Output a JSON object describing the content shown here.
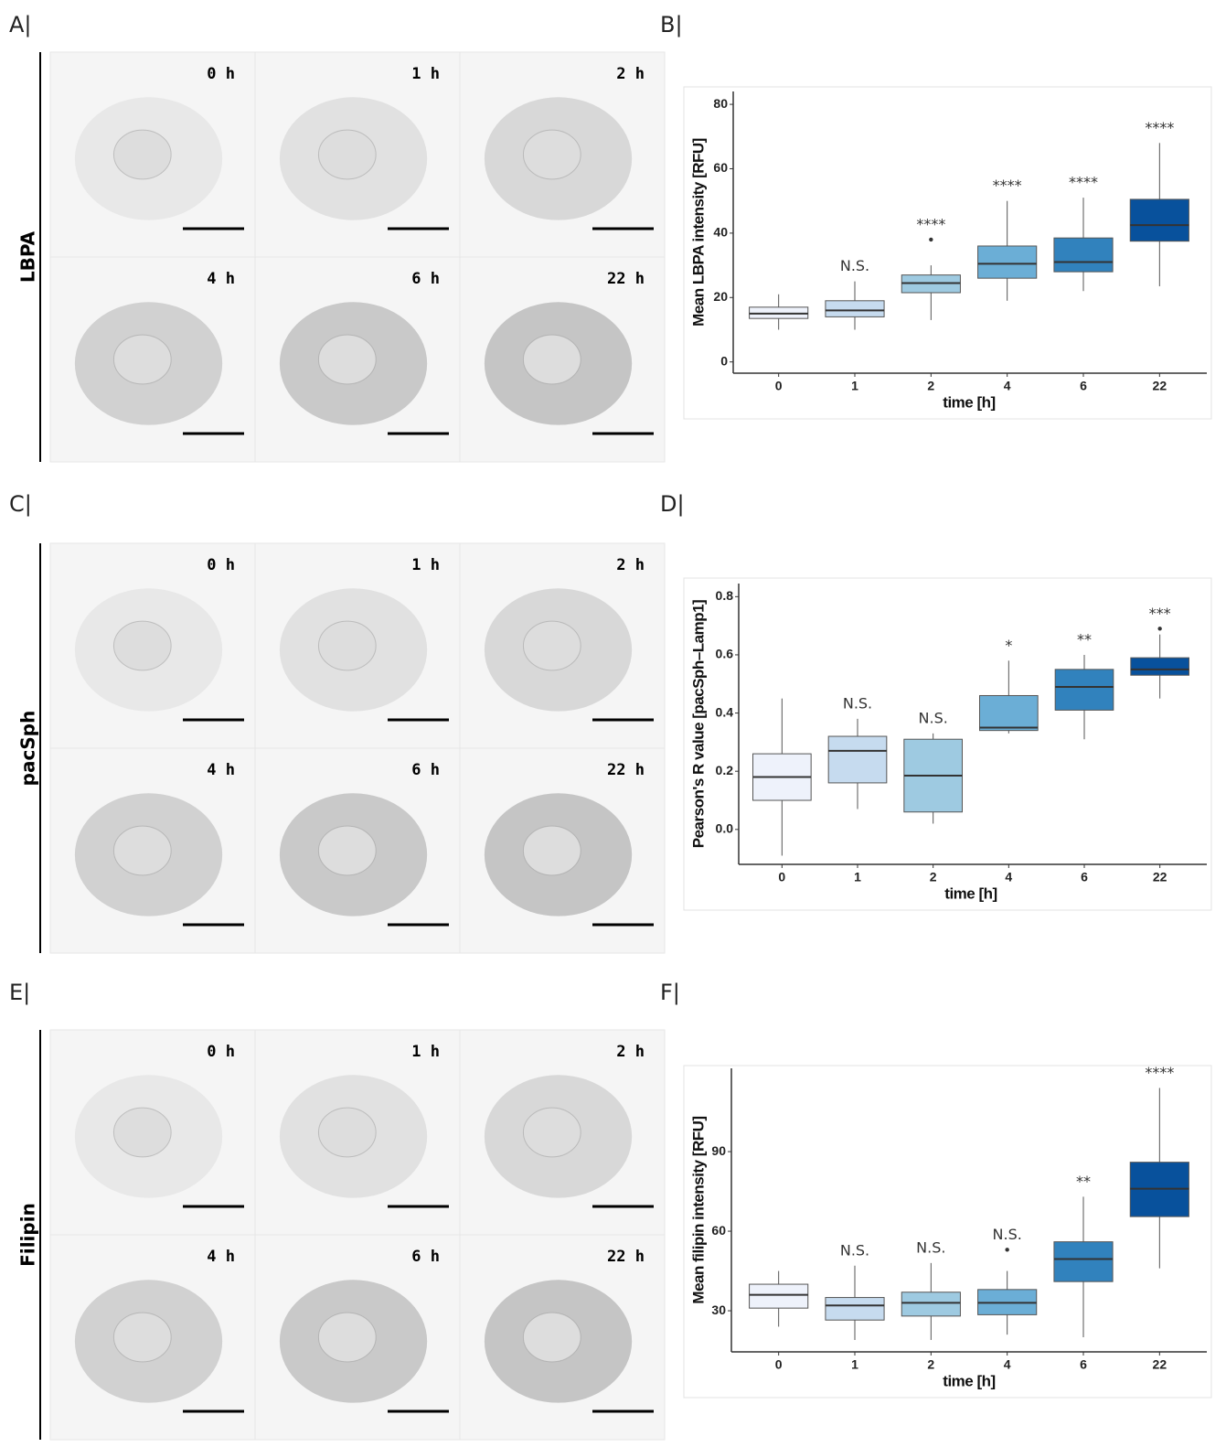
{
  "image_panels": [
    {
      "letter": "A|",
      "label": "LBPA",
      "tiles": [
        "0 h",
        "1 h",
        "2 h",
        "4 h",
        "6 h",
        "22 h"
      ]
    },
    {
      "letter": "C|",
      "label": "pacSph",
      "tiles": [
        "0 h",
        "1 h",
        "2 h",
        "4 h",
        "6 h",
        "22 h"
      ]
    },
    {
      "letter": "E|",
      "label": "Filipin",
      "tiles": [
        "0 h",
        "1 h",
        "2 h",
        "4 h",
        "6 h",
        "22 h"
      ]
    }
  ],
  "chart_data": [
    {
      "type": "box",
      "panel_label": "B|",
      "y_label": "Mean LBPA intensity [RFU]",
      "x_label": "time [h]",
      "categories": [
        "0",
        "1",
        "2",
        "4",
        "6",
        "22"
      ],
      "colors": [
        "#eef2fb",
        "#c6dbef",
        "#9ecae1",
        "#6baed6",
        "#3182bd",
        "#08519c"
      ],
      "boxes": [
        {
          "min": 10,
          "q1": 13.5,
          "median": 15,
          "q3": 17,
          "max": 21,
          "outliers": []
        },
        {
          "min": 10,
          "q1": 14,
          "median": 16,
          "q3": 19,
          "max": 25,
          "outliers": []
        },
        {
          "min": 13,
          "q1": 21.5,
          "median": 24.5,
          "q3": 27,
          "max": 30,
          "outliers": [
            38
          ]
        },
        {
          "min": 19,
          "q1": 26,
          "median": 30.5,
          "q3": 36,
          "max": 50,
          "outliers": []
        },
        {
          "min": 22,
          "q1": 28,
          "median": 31,
          "q3": 38.5,
          "max": 51,
          "outliers": []
        },
        {
          "min": 23.5,
          "q1": 37.5,
          "median": 42.5,
          "q3": 50.5,
          "max": 68,
          "outliers": []
        }
      ],
      "annotations": [
        null,
        "N.S.",
        "****",
        "****",
        "****",
        "****"
      ],
      "ylim": [
        -3.5,
        84
      ],
      "yticks": [
        0,
        20,
        40,
        60,
        80
      ]
    },
    {
      "type": "box",
      "panel_label": "D|",
      "y_label": "Pearson's R value [pacSph–Lamp1]",
      "x_label": "time [h]",
      "categories": [
        "0",
        "1",
        "2",
        "4",
        "6",
        "22"
      ],
      "colors": [
        "#eef2fb",
        "#c6dbef",
        "#9ecae1",
        "#6baed6",
        "#3182bd",
        "#08519c"
      ],
      "boxes": [
        {
          "min": -0.09,
          "q1": 0.1,
          "median": 0.18,
          "q3": 0.26,
          "max": 0.45,
          "outliers": []
        },
        {
          "min": 0.07,
          "q1": 0.16,
          "median": 0.27,
          "q3": 0.32,
          "max": 0.38,
          "outliers": []
        },
        {
          "min": 0.02,
          "q1": 0.06,
          "median": 0.185,
          "q3": 0.31,
          "max": 0.33,
          "outliers": []
        },
        {
          "min": 0.33,
          "q1": 0.34,
          "median": 0.35,
          "q3": 0.46,
          "max": 0.58,
          "outliers": []
        },
        {
          "min": 0.31,
          "q1": 0.41,
          "median": 0.49,
          "q3": 0.55,
          "max": 0.6,
          "outliers": []
        },
        {
          "min": 0.45,
          "q1": 0.53,
          "median": 0.55,
          "q3": 0.59,
          "max": 0.67,
          "outliers": [
            0.69
          ]
        }
      ],
      "annotations": [
        null,
        "N.S.",
        "N.S.",
        "*",
        "**",
        "***"
      ],
      "ylim": [
        -0.12,
        0.845
      ],
      "yticks": [
        {
          "value": 0,
          "label": "0.0"
        },
        0.2,
        0.4,
        0.6,
        0.8
      ]
    },
    {
      "type": "box",
      "panel_label": "F|",
      "y_label": "Mean filipin intensity [RFU]",
      "x_label": "time [h]",
      "categories": [
        "0",
        "1",
        "2",
        "4",
        "6",
        "22"
      ],
      "colors": [
        "#eef2fb",
        "#c6dbef",
        "#9ecae1",
        "#6baed6",
        "#3182bd",
        "#08519c"
      ],
      "boxes": [
        {
          "min": 24,
          "q1": 31,
          "median": 36,
          "q3": 40,
          "max": 45,
          "outliers": []
        },
        {
          "min": 19,
          "q1": 26.5,
          "median": 32,
          "q3": 35,
          "max": 47,
          "outliers": []
        },
        {
          "min": 19,
          "q1": 28,
          "median": 33,
          "q3": 37,
          "max": 48,
          "outliers": []
        },
        {
          "min": 21,
          "q1": 28.5,
          "median": 33,
          "q3": 38,
          "max": 45,
          "outliers": [
            53
          ]
        },
        {
          "min": 20,
          "q1": 41,
          "median": 49.5,
          "q3": 56,
          "max": 73,
          "outliers": []
        },
        {
          "min": 46,
          "q1": 65.5,
          "median": 76,
          "q3": 86,
          "max": 114,
          "outliers": []
        }
      ],
      "annotations": [
        null,
        "N.S.",
        "N.S.",
        "N.S.",
        "**",
        "****"
      ],
      "ylim": [
        14.5,
        121.4
      ],
      "yticks": [
        30,
        60,
        90
      ]
    }
  ]
}
